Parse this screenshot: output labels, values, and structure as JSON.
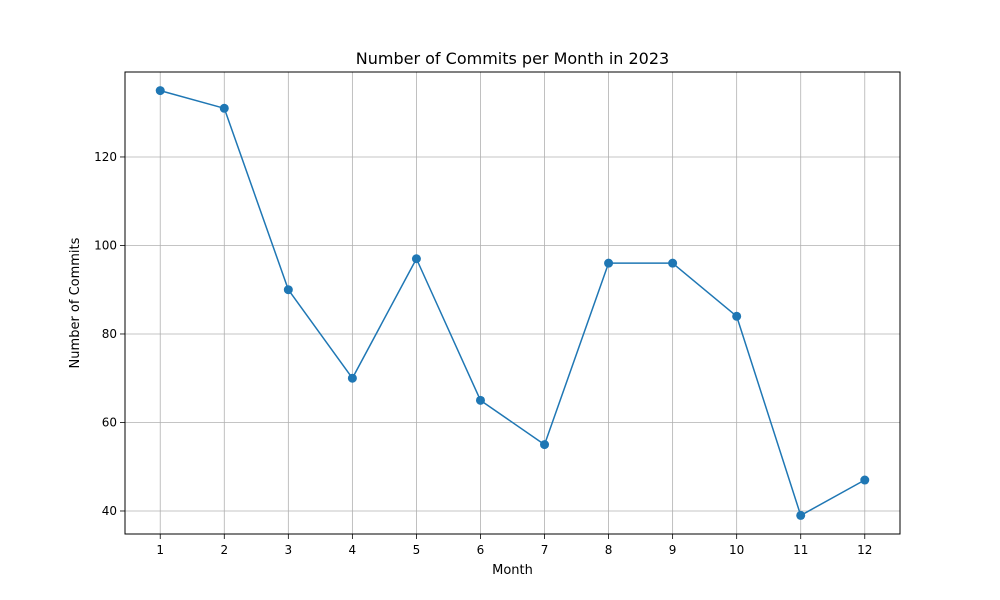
{
  "chart_data": {
    "type": "line",
    "title": "Number of Commits per Month in 2023",
    "xlabel": "Month",
    "ylabel": "Number of Commits",
    "x": [
      1,
      2,
      3,
      4,
      5,
      6,
      7,
      8,
      9,
      10,
      11,
      12
    ],
    "series": [
      {
        "values": [
          135,
          131,
          90,
          70,
          97,
          65,
          55,
          96,
          96,
          84,
          39,
          47
        ]
      }
    ],
    "xlim": [
      0.45,
      12.55
    ],
    "ylim": [
      34.8,
      139.2
    ],
    "xticks": [
      1,
      2,
      3,
      4,
      5,
      6,
      7,
      8,
      9,
      10,
      11,
      12
    ],
    "yticks": [
      40,
      60,
      80,
      100,
      120
    ],
    "grid": true,
    "marker": "circle",
    "line_color": "#1f77b4",
    "grid_color": "#b0b0b0"
  }
}
